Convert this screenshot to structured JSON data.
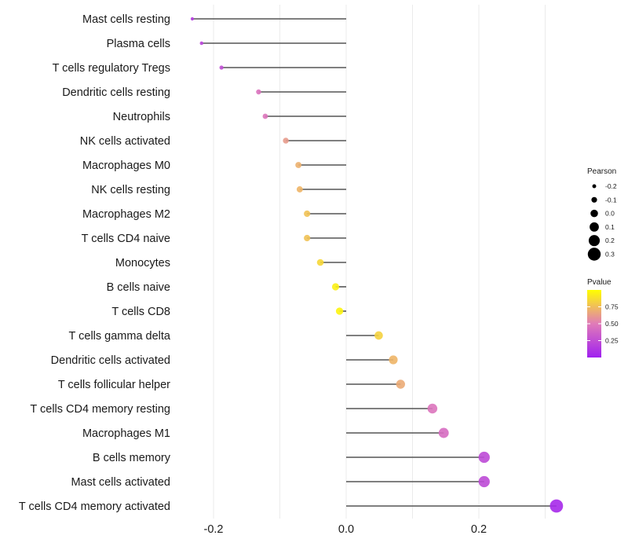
{
  "chart_data": {
    "type": "lollipop",
    "title": "",
    "xlabel": "",
    "ylabel": "",
    "xlim": [
      -0.245,
      0.33
    ],
    "xticks": [
      -0.2,
      0.0,
      0.2
    ],
    "xtick_labels": [
      "-0.2",
      "0.0",
      "0.2"
    ],
    "minor_gridlines": [
      -0.1,
      0.1,
      0.3
    ],
    "grid": true,
    "categories": [
      "Mast cells resting",
      "Plasma cells",
      "T cells regulatory  Tregs ",
      "Dendritic cells resting",
      "Neutrophils",
      "NK cells activated",
      "Macrophages M0",
      "NK cells resting",
      "Macrophages M2",
      "T cells CD4 naive",
      "Monocytes",
      "B cells naive",
      "T cells CD8",
      "T cells gamma delta",
      "Dendritic cells activated",
      "T cells follicular helper",
      "T cells CD4 memory resting",
      "Macrophages M1",
      "B cells memory",
      "Mast cells activated",
      "T cells CD4 memory activated"
    ],
    "pearson": [
      -0.232,
      -0.218,
      -0.188,
      -0.132,
      -0.122,
      -0.091,
      -0.072,
      -0.07,
      -0.059,
      -0.059,
      -0.039,
      -0.016,
      -0.01,
      0.049,
      0.071,
      0.082,
      0.13,
      0.147,
      0.208,
      0.208,
      0.317
    ],
    "pvalue": [
      0.15,
      0.2,
      0.25,
      0.45,
      0.47,
      0.62,
      0.7,
      0.72,
      0.77,
      0.77,
      0.85,
      0.94,
      0.96,
      0.83,
      0.72,
      0.68,
      0.46,
      0.42,
      0.23,
      0.23,
      0.05
    ],
    "legend": {
      "placement": "right",
      "size_title": "Pearson",
      "size_breaks": [
        -0.2,
        -0.1,
        0.0,
        0.1,
        0.2,
        0.3
      ],
      "size_labels": [
        "-0.2",
        "-0.1",
        "0.0",
        "0.1",
        "0.2",
        "0.3"
      ],
      "color_title": "Pvalue",
      "color_breaks": [
        0.25,
        0.5,
        0.75
      ],
      "color_labels": [
        "0.25",
        "0.50",
        "0.75"
      ],
      "color_range": [
        0.0,
        1.0
      ],
      "color_low": "#A020F0",
      "color_mid": "#E07BB8",
      "color_high": "#FFFF00"
    }
  }
}
